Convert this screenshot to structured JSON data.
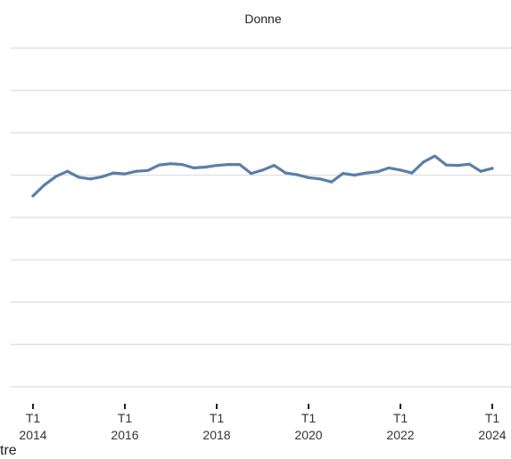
{
  "chart_data": {
    "type": "line",
    "title": "Donne",
    "xlabel": "",
    "ylabel": "",
    "grid": true,
    "line_color": "#5b7fa8",
    "grid_color": "#e2e2e2",
    "x_ticks": [
      {
        "quarter": "T1",
        "year": "2014"
      },
      {
        "quarter": "T1",
        "year": "2016"
      },
      {
        "quarter": "T1",
        "year": "2018"
      },
      {
        "quarter": "T1",
        "year": "2020"
      },
      {
        "quarter": "T1",
        "year": "2022"
      },
      {
        "quarter": "T1",
        "year": "2024"
      }
    ],
    "x_range": [
      2013.9,
      2024.4
    ],
    "y_range": [
      0,
      8
    ],
    "y_gridlines": [
      0,
      1,
      2,
      3,
      4,
      5,
      6,
      7,
      8
    ],
    "series": [
      {
        "x": [
          2014.0,
          2014.25,
          2014.5,
          2014.75,
          2015.0,
          2015.25,
          2015.5,
          2015.75,
          2016.0,
          2016.25,
          2016.5,
          2016.75,
          2017.0,
          2017.25,
          2017.5,
          2017.75,
          2018.0,
          2018.25,
          2018.5,
          2018.75,
          2019.0,
          2019.25,
          2019.5,
          2019.75,
          2020.0,
          2020.25,
          2020.5,
          2020.75,
          2021.0,
          2021.25,
          2021.5,
          2021.75,
          2022.0,
          2022.25,
          2022.5,
          2022.75,
          2023.0,
          2023.25,
          2023.5,
          2023.75,
          2024.0
        ],
        "y": [
          4.51,
          4.77,
          4.97,
          5.09,
          4.95,
          4.91,
          4.96,
          5.05,
          5.03,
          5.09,
          5.11,
          5.24,
          5.27,
          5.25,
          5.17,
          5.19,
          5.23,
          5.25,
          5.25,
          5.04,
          5.12,
          5.23,
          5.05,
          5.01,
          4.94,
          4.91,
          4.84,
          5.04,
          5.0,
          5.05,
          5.08,
          5.17,
          5.12,
          5.05,
          5.31,
          5.45,
          5.24,
          5.23,
          5.26,
          5.09,
          5.16
        ]
      }
    ]
  },
  "stray_text": "tre"
}
